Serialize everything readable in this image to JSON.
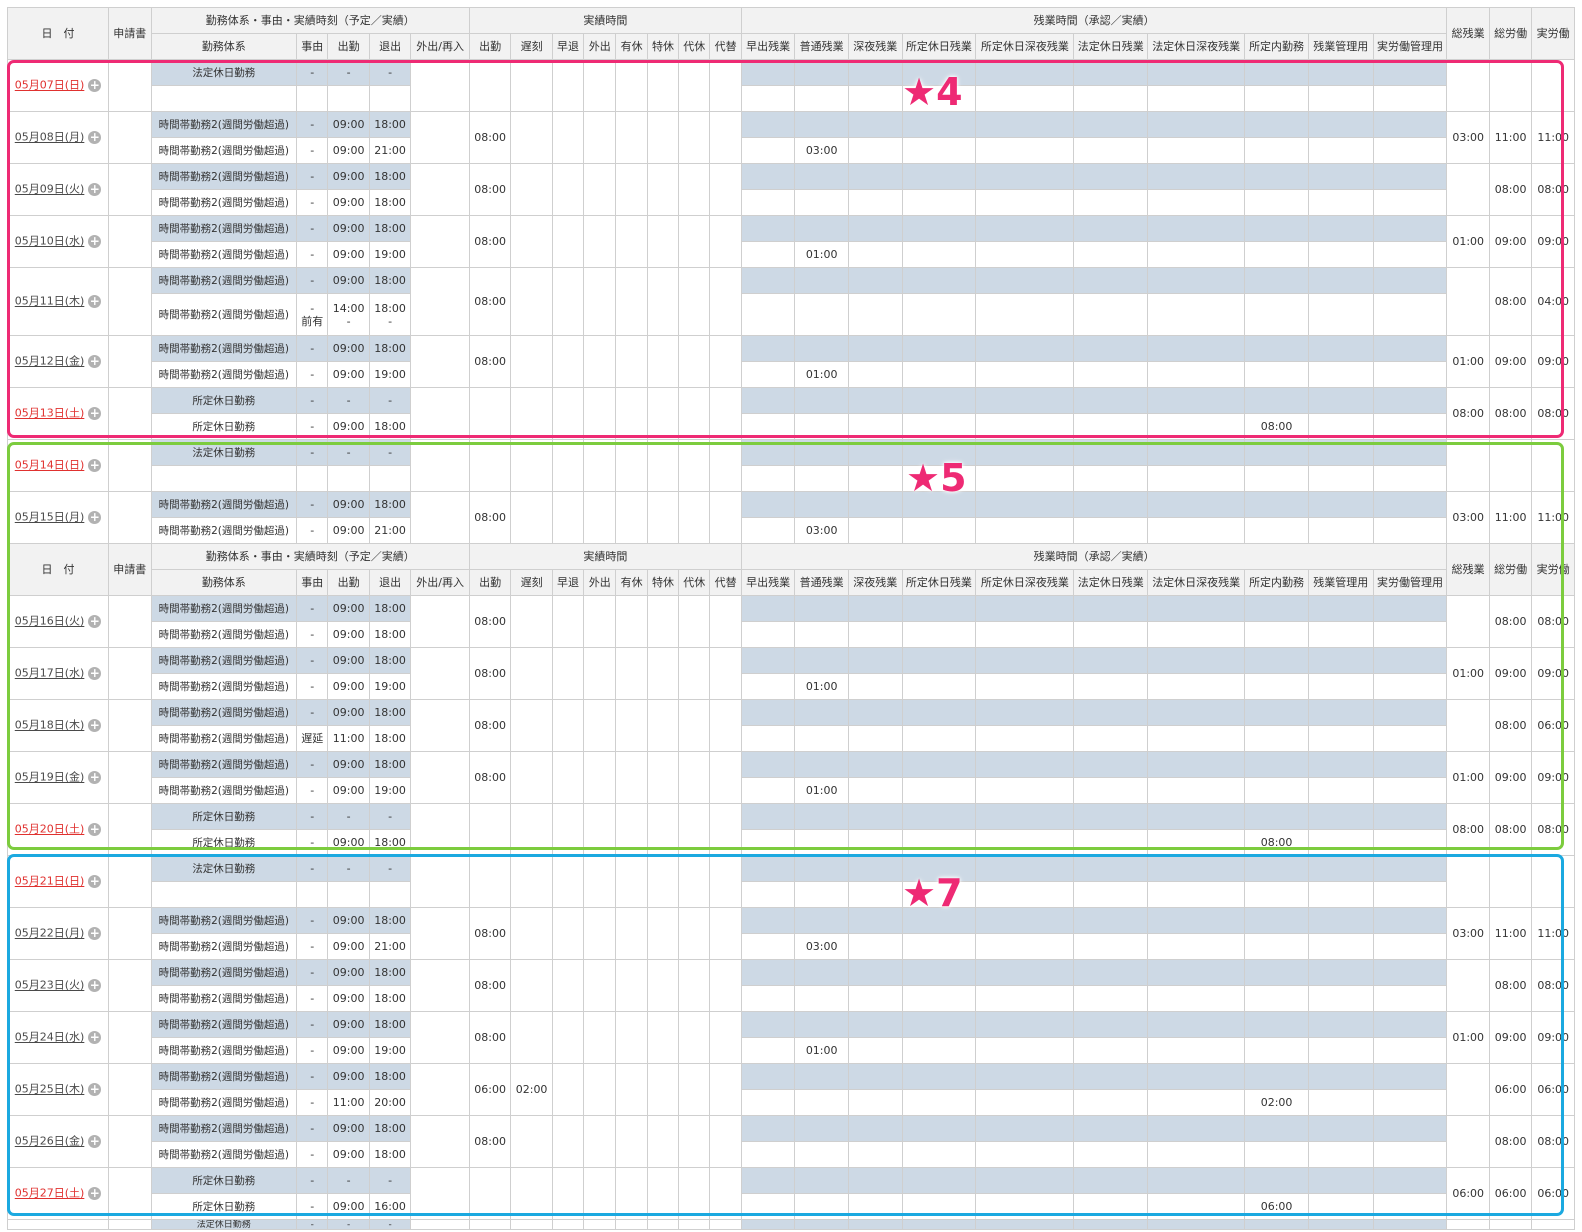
{
  "headers": {
    "date": "日　付",
    "application": "申請書",
    "group_schedule": "勤務体系・事由・実績時刻（予定／実績）",
    "group_actual": "実績時間",
    "group_overtime": "残業時間（承認／実績）",
    "total_ot": "総残業",
    "total_work": "総労働",
    "real_work": "実労働",
    "sub": [
      "勤務体系",
      "事由",
      "出勤",
      "退出",
      "外出/再入",
      "出勤",
      "遅刻",
      "早退",
      "外出",
      "有休",
      "特休",
      "代休",
      "代替",
      "早出残業",
      "普通残業",
      "深夜残業",
      "所定休日残業",
      "所定休日深夜残業",
      "法定休日残業",
      "法定休日深夜残業",
      "所定内勤務",
      "残業管理用",
      "実労働管理用"
    ]
  },
  "markers": {
    "box1": {
      "label": "★4",
      "color": "#ee2a74"
    },
    "box2": {
      "label": "★5",
      "color": "#7ccc3e"
    },
    "box3": {
      "label": "★7",
      "color": "#1ba9e0"
    }
  },
  "days": [
    {
      "date": "05月07日(日)",
      "holiday": true,
      "rows": [
        {
          "type": "法定休日勤務",
          "reason": "-",
          "in": "-",
          "out": "-"
        },
        {
          "type": "",
          "reason": "",
          "in": "",
          "out": ""
        }
      ],
      "actual_in": "",
      "late": "",
      "ot": "",
      "shotei_ot": "",
      "shotei": "",
      "total_ot": "",
      "total": "",
      "real": ""
    },
    {
      "date": "05月08日(月)",
      "holiday": false,
      "rows": [
        {
          "type": "時間帯勤務2(週間労働超過)",
          "reason": "-",
          "in": "09:00",
          "out": "18:00"
        },
        {
          "type": "時間帯勤務2(週間労働超過)",
          "reason": "-",
          "in": "09:00",
          "out": "21:00"
        }
      ],
      "actual_in": "08:00",
      "late": "",
      "ot": "03:00",
      "shotei": "",
      "total_ot": "03:00",
      "total": "11:00",
      "real": "11:00"
    },
    {
      "date": "05月09日(火)",
      "holiday": false,
      "rows": [
        {
          "type": "時間帯勤務2(週間労働超過)",
          "reason": "-",
          "in": "09:00",
          "out": "18:00"
        },
        {
          "type": "時間帯勤務2(週間労働超過)",
          "reason": "-",
          "in": "09:00",
          "out": "18:00"
        }
      ],
      "actual_in": "08:00",
      "late": "",
      "ot": "",
      "shotei": "",
      "total_ot": "",
      "total": "08:00",
      "real": "08:00"
    },
    {
      "date": "05月10日(水)",
      "holiday": false,
      "rows": [
        {
          "type": "時間帯勤務2(週間労働超過)",
          "reason": "-",
          "in": "09:00",
          "out": "18:00"
        },
        {
          "type": "時間帯勤務2(週間労働超過)",
          "reason": "-",
          "in": "09:00",
          "out": "19:00"
        }
      ],
      "actual_in": "08:00",
      "late": "",
      "ot": "01:00",
      "shotei": "",
      "total_ot": "01:00",
      "total": "09:00",
      "real": "09:00"
    },
    {
      "date": "05月11日(木)",
      "holiday": false,
      "tall": true,
      "rows": [
        {
          "type": "時間帯勤務2(週間労働超過)",
          "reason": "-",
          "in": "09:00",
          "out": "18:00"
        },
        {
          "type": "時間帯勤務2(週間労働超過)",
          "reason": "-",
          "reason2": "前有",
          "in": "14:00",
          "in2": "-",
          "out": "18:00",
          "out2": "-"
        }
      ],
      "actual_in": "08:00",
      "late": "",
      "ot": "",
      "shotei": "",
      "total_ot": "",
      "total": "08:00",
      "real": "04:00"
    },
    {
      "date": "05月12日(金)",
      "holiday": false,
      "rows": [
        {
          "type": "時間帯勤務2(週間労働超過)",
          "reason": "-",
          "in": "09:00",
          "out": "18:00"
        },
        {
          "type": "時間帯勤務2(週間労働超過)",
          "reason": "-",
          "in": "09:00",
          "out": "19:00"
        }
      ],
      "actual_in": "08:00",
      "late": "",
      "ot": "01:00",
      "shotei": "",
      "total_ot": "01:00",
      "total": "09:00",
      "real": "09:00"
    },
    {
      "date": "05月13日(土)",
      "holiday": true,
      "rows": [
        {
          "type": "所定休日勤務",
          "reason": "-",
          "in": "-",
          "out": "-"
        },
        {
          "type": "所定休日勤務",
          "reason": "-",
          "in": "09:00",
          "out": "18:00"
        }
      ],
      "actual_in": "",
      "late": "",
      "ot": "",
      "shotei": "08:00",
      "total_ot": "08:00",
      "total": "08:00",
      "real": "08:00"
    },
    {
      "date": "05月14日(日)",
      "holiday": true,
      "rows": [
        {
          "type": "法定休日勤務",
          "reason": "-",
          "in": "-",
          "out": "-"
        },
        {
          "type": "",
          "reason": "",
          "in": "",
          "out": ""
        }
      ],
      "actual_in": "",
      "late": "",
      "ot": "",
      "shotei": "",
      "total_ot": "",
      "total": "",
      "real": ""
    },
    {
      "date": "05月15日(月)",
      "holiday": false,
      "rows": [
        {
          "type": "時間帯勤務2(週間労働超過)",
          "reason": "-",
          "in": "09:00",
          "out": "18:00"
        },
        {
          "type": "時間帯勤務2(週間労働超過)",
          "reason": "-",
          "in": "09:00",
          "out": "21:00"
        }
      ],
      "actual_in": "08:00",
      "late": "",
      "ot": "03:00",
      "shotei": "",
      "total_ot": "03:00",
      "total": "11:00",
      "real": "11:00"
    },
    {
      "header": true
    },
    {
      "date": "05月16日(火)",
      "holiday": false,
      "rows": [
        {
          "type": "時間帯勤務2(週間労働超過)",
          "reason": "-",
          "in": "09:00",
          "out": "18:00"
        },
        {
          "type": "時間帯勤務2(週間労働超過)",
          "reason": "-",
          "in": "09:00",
          "out": "18:00"
        }
      ],
      "actual_in": "08:00",
      "late": "",
      "ot": "",
      "shotei": "",
      "total_ot": "",
      "total": "08:00",
      "real": "08:00"
    },
    {
      "date": "05月17日(水)",
      "holiday": false,
      "rows": [
        {
          "type": "時間帯勤務2(週間労働超過)",
          "reason": "-",
          "in": "09:00",
          "out": "18:00"
        },
        {
          "type": "時間帯勤務2(週間労働超過)",
          "reason": "-",
          "in": "09:00",
          "out": "19:00"
        }
      ],
      "actual_in": "08:00",
      "late": "",
      "ot": "01:00",
      "shotei": "",
      "total_ot": "01:00",
      "total": "09:00",
      "real": "09:00"
    },
    {
      "date": "05月18日(木)",
      "holiday": false,
      "rows": [
        {
          "type": "時間帯勤務2(週間労働超過)",
          "reason": "-",
          "in": "09:00",
          "out": "18:00"
        },
        {
          "type": "時間帯勤務2(週間労働超過)",
          "reason": "遅延",
          "in": "11:00",
          "out": "18:00"
        }
      ],
      "actual_in": "08:00",
      "late": "",
      "ot": "",
      "shotei": "",
      "total_ot": "",
      "total": "08:00",
      "real": "06:00"
    },
    {
      "date": "05月19日(金)",
      "holiday": false,
      "rows": [
        {
          "type": "時間帯勤務2(週間労働超過)",
          "reason": "-",
          "in": "09:00",
          "out": "18:00"
        },
        {
          "type": "時間帯勤務2(週間労働超過)",
          "reason": "-",
          "in": "09:00",
          "out": "19:00"
        }
      ],
      "actual_in": "08:00",
      "late": "",
      "ot": "01:00",
      "shotei": "",
      "total_ot": "01:00",
      "total": "09:00",
      "real": "09:00"
    },
    {
      "date": "05月20日(土)",
      "holiday": true,
      "rows": [
        {
          "type": "所定休日勤務",
          "reason": "-",
          "in": "-",
          "out": "-"
        },
        {
          "type": "所定休日勤務",
          "reason": "-",
          "in": "09:00",
          "out": "18:00"
        }
      ],
      "actual_in": "",
      "late": "",
      "ot": "",
      "shotei": "08:00",
      "total_ot": "08:00",
      "total": "08:00",
      "real": "08:00"
    },
    {
      "date": "05月21日(日)",
      "holiday": true,
      "rows": [
        {
          "type": "法定休日勤務",
          "reason": "-",
          "in": "-",
          "out": "-"
        },
        {
          "type": "",
          "reason": "",
          "in": "",
          "out": ""
        }
      ],
      "actual_in": "",
      "late": "",
      "ot": "",
      "shotei": "",
      "total_ot": "",
      "total": "",
      "real": ""
    },
    {
      "date": "05月22日(月)",
      "holiday": false,
      "rows": [
        {
          "type": "時間帯勤務2(週間労働超過)",
          "reason": "-",
          "in": "09:00",
          "out": "18:00"
        },
        {
          "type": "時間帯勤務2(週間労働超過)",
          "reason": "-",
          "in": "09:00",
          "out": "21:00"
        }
      ],
      "actual_in": "08:00",
      "late": "",
      "ot": "03:00",
      "shotei": "",
      "total_ot": "03:00",
      "total": "11:00",
      "real": "11:00"
    },
    {
      "date": "05月23日(火)",
      "holiday": false,
      "rows": [
        {
          "type": "時間帯勤務2(週間労働超過)",
          "reason": "-",
          "in": "09:00",
          "out": "18:00"
        },
        {
          "type": "時間帯勤務2(週間労働超過)",
          "reason": "-",
          "in": "09:00",
          "out": "18:00"
        }
      ],
      "actual_in": "08:00",
      "late": "",
      "ot": "",
      "shotei": "",
      "total_ot": "",
      "total": "08:00",
      "real": "08:00"
    },
    {
      "date": "05月24日(水)",
      "holiday": false,
      "rows": [
        {
          "type": "時間帯勤務2(週間労働超過)",
          "reason": "-",
          "in": "09:00",
          "out": "18:00"
        },
        {
          "type": "時間帯勤務2(週間労働超過)",
          "reason": "-",
          "in": "09:00",
          "out": "19:00"
        }
      ],
      "actual_in": "08:00",
      "late": "",
      "ot": "01:00",
      "shotei": "",
      "total_ot": "01:00",
      "total": "09:00",
      "real": "09:00"
    },
    {
      "date": "05月25日(木)",
      "holiday": false,
      "rows": [
        {
          "type": "時間帯勤務2(週間労働超過)",
          "reason": "-",
          "in": "09:00",
          "out": "18:00"
        },
        {
          "type": "時間帯勤務2(週間労働超過)",
          "reason": "-",
          "in": "11:00",
          "out": "20:00"
        }
      ],
      "actual_in": "06:00",
      "late": "02:00",
      "ot": "",
      "shotei": "02:00",
      "total_ot": "",
      "total": "06:00",
      "real": "06:00"
    },
    {
      "date": "05月26日(金)",
      "holiday": false,
      "rows": [
        {
          "type": "時間帯勤務2(週間労働超過)",
          "reason": "-",
          "in": "09:00",
          "out": "18:00"
        },
        {
          "type": "時間帯勤務2(週間労働超過)",
          "reason": "-",
          "in": "09:00",
          "out": "18:00"
        }
      ],
      "actual_in": "08:00",
      "late": "",
      "ot": "",
      "shotei": "",
      "total_ot": "",
      "total": "08:00",
      "real": "08:00"
    },
    {
      "date": "05月27日(土)",
      "holiday": true,
      "rows": [
        {
          "type": "所定休日勤務",
          "reason": "-",
          "in": "-",
          "out": "-"
        },
        {
          "type": "所定休日勤務",
          "reason": "-",
          "in": "09:00",
          "out": "16:00"
        }
      ],
      "actual_in": "",
      "late": "",
      "ot": "",
      "shotei": "06:00",
      "total_ot": "06:00",
      "total": "06:00",
      "real": "06:00"
    },
    {
      "partial": true,
      "rows": [
        {
          "type": "法定休日勤務",
          "reason": "-",
          "in": "-",
          "out": "-"
        }
      ]
    }
  ]
}
